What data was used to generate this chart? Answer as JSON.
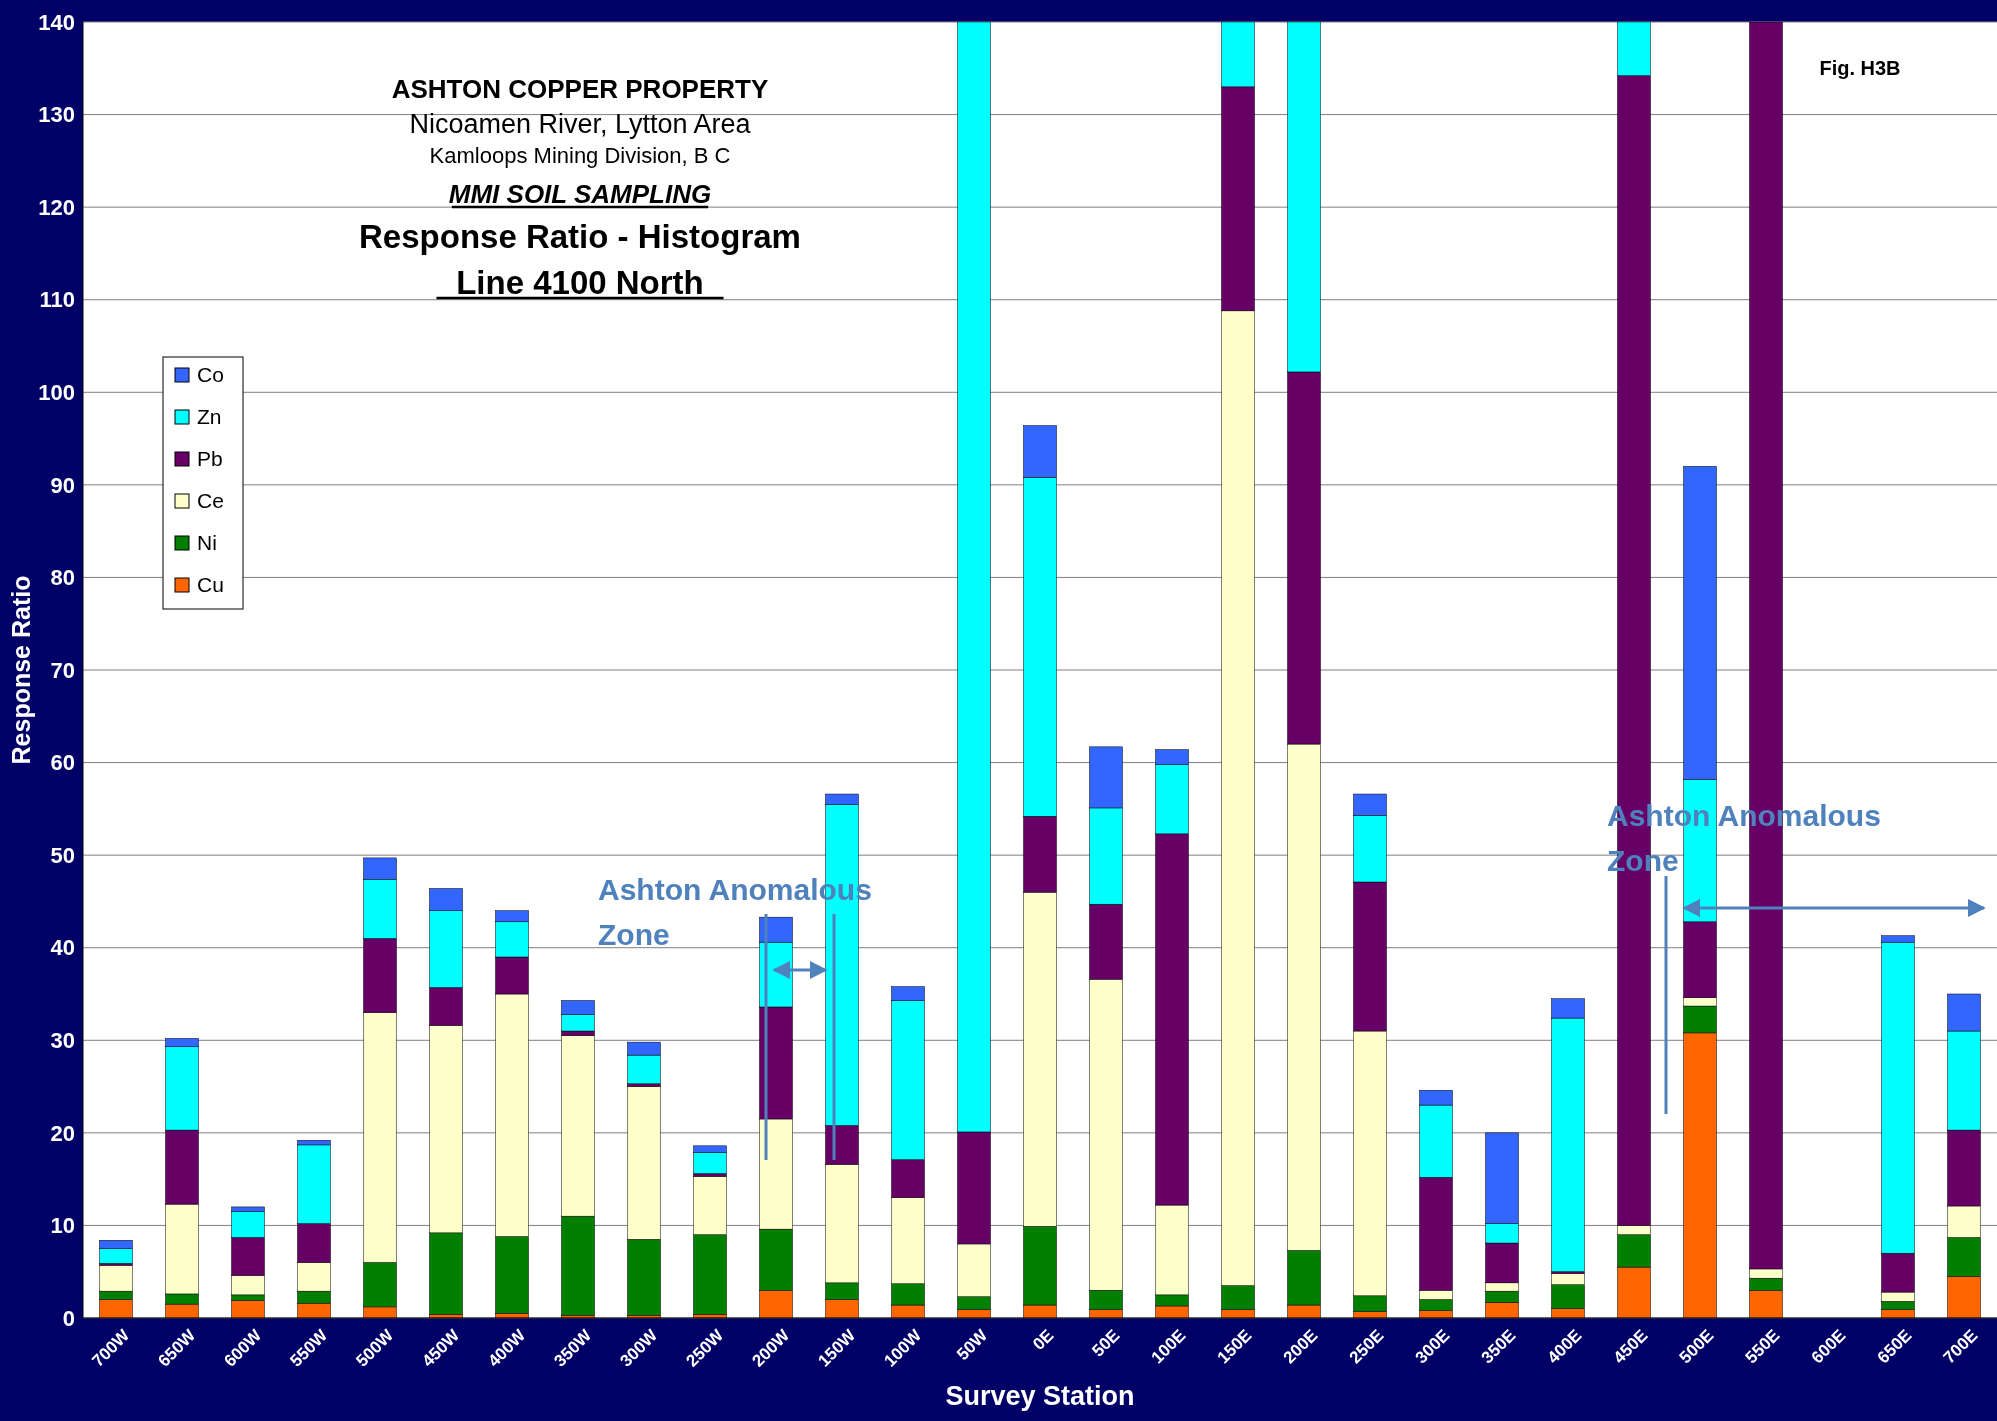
{
  "chart_data": {
    "type": "bar",
    "stacked": true,
    "title": "ASHTON COPPER PROPERTY",
    "subtitle": "Nicoamen River, Lytton Area",
    "xlabel": "Survey Station",
    "ylabel": "Response Ratio",
    "categories": [
      "700W",
      "650W",
      "600W",
      "550W",
      "500W",
      "450W",
      "400W",
      "350W",
      "300W",
      "250W",
      "200W",
      "150W",
      "100W",
      "50W",
      "0E",
      "50E",
      "100E",
      "150E",
      "200E",
      "250E",
      "300E",
      "350E",
      "400E",
      "450E",
      "500E",
      "550E",
      "600E",
      "650E",
      "700E"
    ],
    "series": [
      {
        "name": "Cu",
        "color": "#ff6600",
        "values": [
          2,
          1.5,
          1.9,
          1.6,
          1.2,
          0.4,
          0.5,
          0.3,
          0.3,
          0.4,
          3,
          2,
          1.4,
          0.9,
          1.4,
          0.9,
          1.3,
          0.9,
          1.4,
          0.7,
          0.8,
          1.7,
          1,
          5.5,
          30.8,
          3,
          null,
          0.9,
          4.5
        ]
      },
      {
        "name": "Ni",
        "color": "#007f00",
        "values": [
          0.9,
          1.1,
          0.6,
          1.3,
          4.8,
          8.8,
          8.3,
          10.7,
          8.2,
          8.6,
          6.6,
          1.8,
          2.3,
          1.4,
          8.5,
          2.1,
          1.2,
          2.6,
          5.9,
          1.7,
          1.2,
          1.2,
          2.6,
          3.5,
          2.9,
          1.3,
          null,
          0.9,
          4.2
        ]
      },
      {
        "name": "Ce",
        "color": "#ffffcc",
        "values": [
          2.8,
          9.7,
          2.1,
          3.1,
          27,
          22.4,
          26.2,
          19.5,
          16.5,
          6.3,
          11.9,
          12.8,
          9.3,
          5.7,
          36.1,
          33.6,
          9.7,
          105.3,
          54.7,
          28.6,
          1,
          0.9,
          1.2,
          1,
          0.9,
          1,
          null,
          1,
          3.4
        ]
      },
      {
        "name": "Pb",
        "color": "#660066",
        "values": [
          0.2,
          8,
          4.1,
          4.2,
          8,
          4.1,
          4,
          0.5,
          0.3,
          0.3,
          12.1,
          4.2,
          4.1,
          12.1,
          8.2,
          8.1,
          40.1,
          24.2,
          40.2,
          16.1,
          12.2,
          4.3,
          0.2,
          124.2,
          8.2,
          134.7,
          null,
          4.2,
          8.2
        ]
      },
      {
        "name": "Zn",
        "color": "#00ffff",
        "values": [
          1.6,
          9,
          2.8,
          8.5,
          6.4,
          8.3,
          3.8,
          1.8,
          3.1,
          2.3,
          7,
          34.7,
          17.2,
          119.9,
          36.6,
          10.4,
          7.5,
          7,
          37.8,
          7.2,
          7.8,
          2.1,
          27.4,
          5.8,
          15.4,
          null,
          null,
          33.6,
          10.7
        ]
      },
      {
        "name": "Co",
        "color": "#3366ff",
        "values": [
          0.9,
          0.9,
          0.5,
          0.5,
          2.3,
          2.4,
          1.2,
          1.5,
          1.4,
          0.7,
          2.7,
          1.1,
          1.5,
          null,
          5.6,
          6.6,
          1.6,
          null,
          null,
          2.3,
          1.6,
          9.8,
          2.1,
          null,
          33.8,
          null,
          null,
          0.7,
          4
        ]
      }
    ],
    "ylim": [
      0,
      140
    ],
    "yticks": [
      0,
      10,
      20,
      30,
      40,
      50,
      60,
      70,
      80,
      90,
      100,
      110,
      120,
      130,
      140
    ],
    "grid": "y",
    "legend": "left",
    "annotations": [
      "Kamloops Mining Division, B C",
      "MMI SOIL SAMPLING",
      "Response Ratio - Histogram",
      "Line 4100 North",
      "Fig. H3B",
      "Ashton Anomalous Zone",
      "Ashton Anomalous Zone"
    ]
  }
}
